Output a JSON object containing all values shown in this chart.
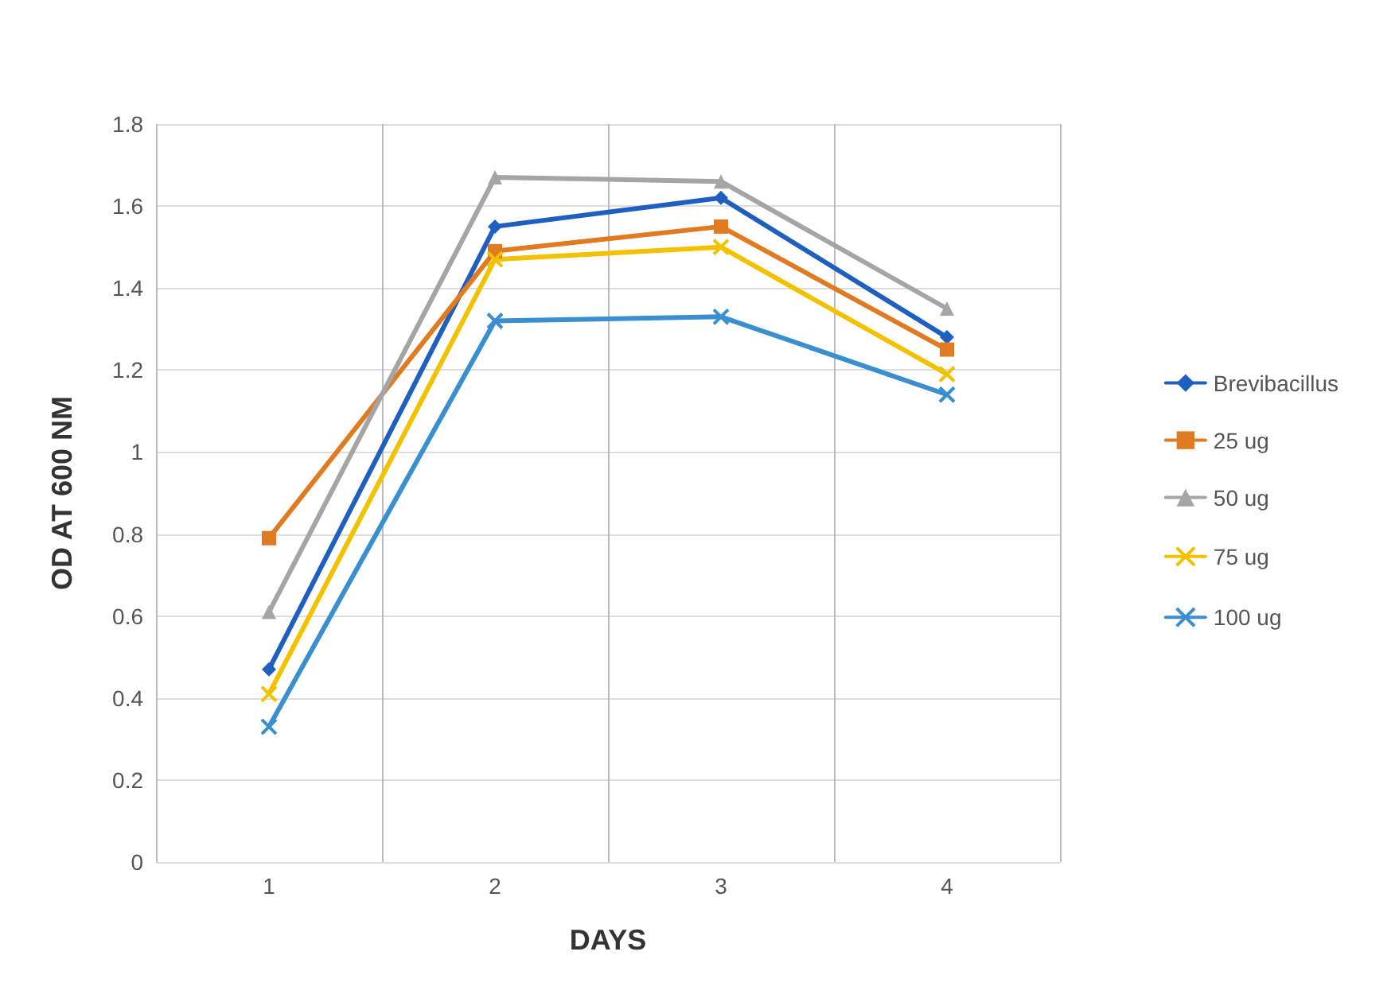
{
  "chart_data": {
    "type": "line",
    "xlabel": "DAYS",
    "ylabel": "OD AT 600 NM",
    "categories": [
      "1",
      "2",
      "3",
      "4"
    ],
    "series": [
      {
        "name": "Brevibacillus",
        "color": "#1f5fbf",
        "marker": "diamond",
        "values": [
          0.47,
          1.55,
          1.62,
          1.28
        ]
      },
      {
        "name": "25 ug",
        "color": "#e07b22",
        "marker": "square",
        "values": [
          0.79,
          1.49,
          1.55,
          1.25
        ]
      },
      {
        "name": "50 ug",
        "color": "#a5a5a5",
        "marker": "triangle",
        "values": [
          0.61,
          1.67,
          1.66,
          1.35
        ]
      },
      {
        "name": "75 ug",
        "color": "#f2c200",
        "marker": "cross",
        "values": [
          0.41,
          1.47,
          1.5,
          1.19
        ]
      },
      {
        "name": "100 ug",
        "color": "#3a8fd0",
        "marker": "cross",
        "values": [
          0.33,
          1.32,
          1.33,
          1.14
        ]
      }
    ],
    "ylim": [
      0,
      1.8
    ],
    "yticks": [
      0,
      0.2,
      0.4,
      0.6,
      0.8,
      1,
      1.2,
      1.4,
      1.6,
      1.8
    ],
    "grid": true,
    "legend": "right",
    "line_style": "solid"
  }
}
